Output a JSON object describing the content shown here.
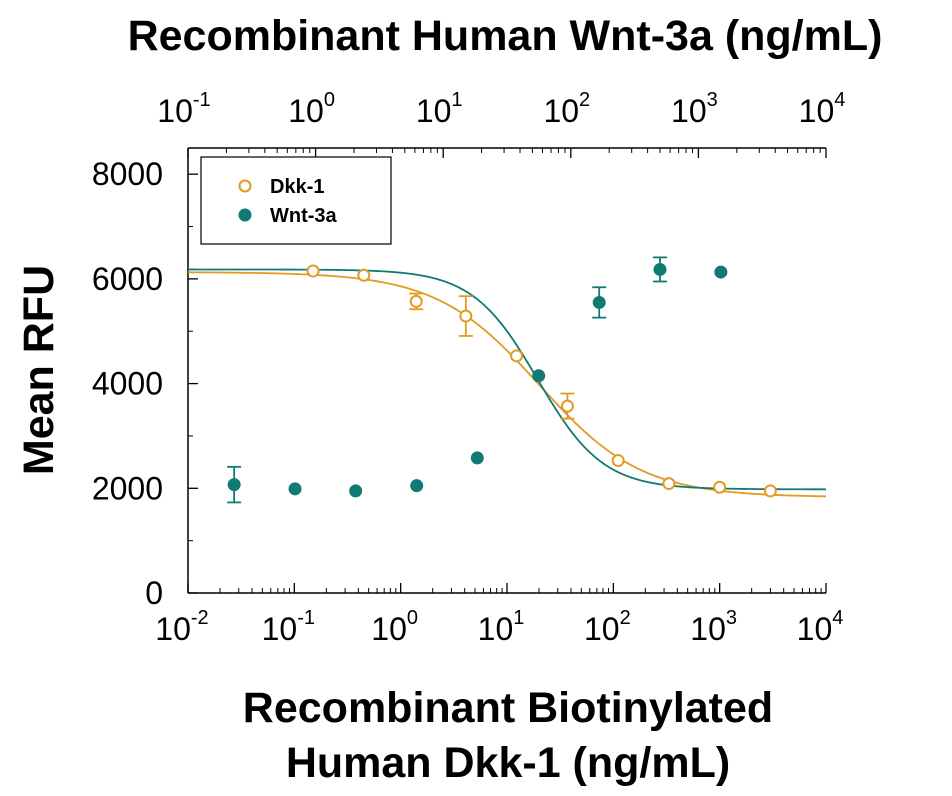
{
  "chart_data": {
    "type": "scatter",
    "top_axis": {
      "label": "Recombinant Human Wnt-3a (ng/mL)",
      "scale": "log",
      "range": [
        0.1,
        10000
      ],
      "ticks": [
        {
          "base": "10",
          "exp": "-1"
        },
        {
          "base": "10",
          "exp": "0"
        },
        {
          "base": "10",
          "exp": "1"
        },
        {
          "base": "10",
          "exp": "2"
        },
        {
          "base": "10",
          "exp": "3"
        },
        {
          "base": "10",
          "exp": "4"
        }
      ]
    },
    "x_axis": {
      "label_line1": "Recombinant Biotinylated",
      "label_line2": "Human Dkk-1 (ng/mL)",
      "scale": "log",
      "range": [
        0.01,
        10000
      ],
      "ticks": [
        {
          "base": "10",
          "exp": "-2"
        },
        {
          "base": "10",
          "exp": "-1"
        },
        {
          "base": "10",
          "exp": "0"
        },
        {
          "base": "10",
          "exp": "1"
        },
        {
          "base": "10",
          "exp": "2"
        },
        {
          "base": "10",
          "exp": "3"
        },
        {
          "base": "10",
          "exp": "4"
        }
      ]
    },
    "y_axis": {
      "label": "Mean RFU",
      "range": [
        0,
        8500
      ],
      "ticks": [
        "0",
        "2000",
        "4000",
        "6000",
        "8000"
      ]
    },
    "legend": {
      "position": "top-left"
    },
    "series": [
      {
        "name": "Dkk-1",
        "axis": "bottom",
        "color": "#E39A22",
        "marker": "open-circle",
        "points": [
          {
            "x": 0.15,
            "y": 6150,
            "err": 0
          },
          {
            "x": 0.45,
            "y": 6070,
            "err": 0
          },
          {
            "x": 1.4,
            "y": 5570,
            "err": 150
          },
          {
            "x": 4.1,
            "y": 5290,
            "err": 380
          },
          {
            "x": 12.3,
            "y": 4530,
            "err": 0
          },
          {
            "x": 37,
            "y": 3570,
            "err": 240
          },
          {
            "x": 111,
            "y": 2530,
            "err": 0
          },
          {
            "x": 333,
            "y": 2090,
            "err": 0
          },
          {
            "x": 1000,
            "y": 2020,
            "err": 0
          },
          {
            "x": 3000,
            "y": 1950,
            "err": 0
          }
        ],
        "fit": {
          "top": 6130,
          "bottom": 1830,
          "ec50": 20,
          "hill": 0.9
        }
      },
      {
        "name": "Wnt-3a",
        "axis": "top",
        "color": "#117A72",
        "marker": "filled-circle",
        "points": [
          {
            "x": 0.23,
            "y": 2070,
            "err": 340
          },
          {
            "x": 0.69,
            "y": 1990,
            "err": 0
          },
          {
            "x": 2.06,
            "y": 1950,
            "err": 0
          },
          {
            "x": 6.2,
            "y": 2050,
            "err": 0
          },
          {
            "x": 18.5,
            "y": 2580,
            "err": 0
          },
          {
            "x": 56,
            "y": 4150,
            "err": 0
          },
          {
            "x": 167,
            "y": 5550,
            "err": 290
          },
          {
            "x": 500,
            "y": 6180,
            "err": 230
          },
          {
            "x": 1500,
            "y": 6130,
            "err": 0
          }
        ],
        "fit": {
          "top": 6180,
          "bottom": 1980,
          "ec50": 55,
          "hill": 1.7
        }
      }
    ]
  }
}
